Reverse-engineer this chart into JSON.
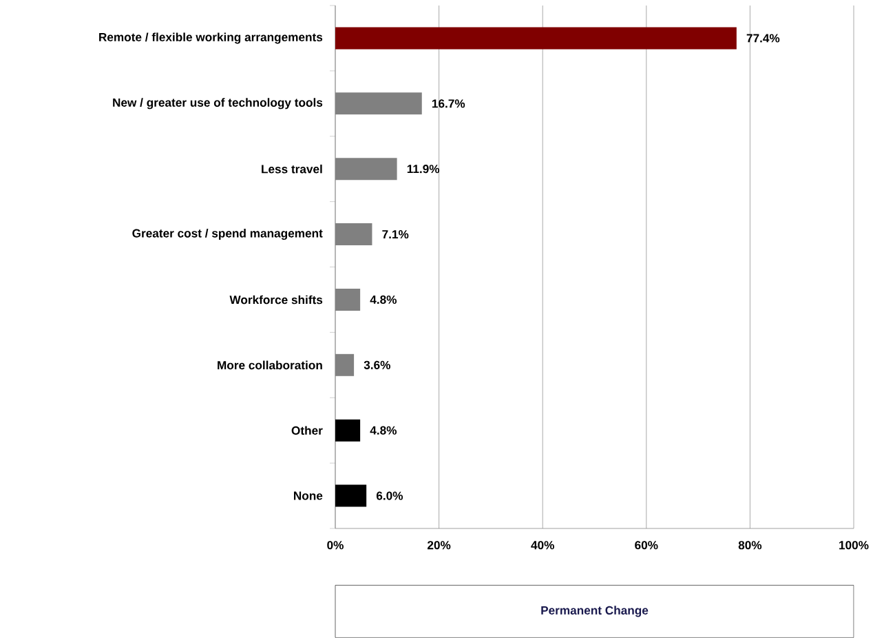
{
  "chart_data": {
    "type": "bar",
    "orientation": "horizontal",
    "xlabel": "Permanent Change",
    "categories": [
      "Remote / flexible working arrangements",
      "New / greater use of technology tools",
      "Less travel",
      "Greater cost / spend management",
      "Workforce shifts",
      "More collaboration",
      "Other",
      "None"
    ],
    "values": [
      77.4,
      16.7,
      11.9,
      7.1,
      4.8,
      3.6,
      4.8,
      6.0
    ],
    "value_labels": [
      "77.4%",
      "16.7%",
      "11.9%",
      "7.1%",
      "4.8%",
      "3.6%",
      "4.8%",
      "6.0%"
    ],
    "colors": [
      "#800000",
      "#808080",
      "#808080",
      "#808080",
      "#808080",
      "#808080",
      "#000000",
      "#000000"
    ],
    "xlim": [
      0,
      100
    ],
    "xticks": [
      {
        "value": 0,
        "label": "0%"
      },
      {
        "value": 20,
        "label": "20%"
      },
      {
        "value": 40,
        "label": "40%"
      },
      {
        "value": 60,
        "label": "60%"
      },
      {
        "value": 80,
        "label": "80%"
      },
      {
        "value": 100,
        "label": "100%"
      }
    ],
    "grid": "x"
  }
}
